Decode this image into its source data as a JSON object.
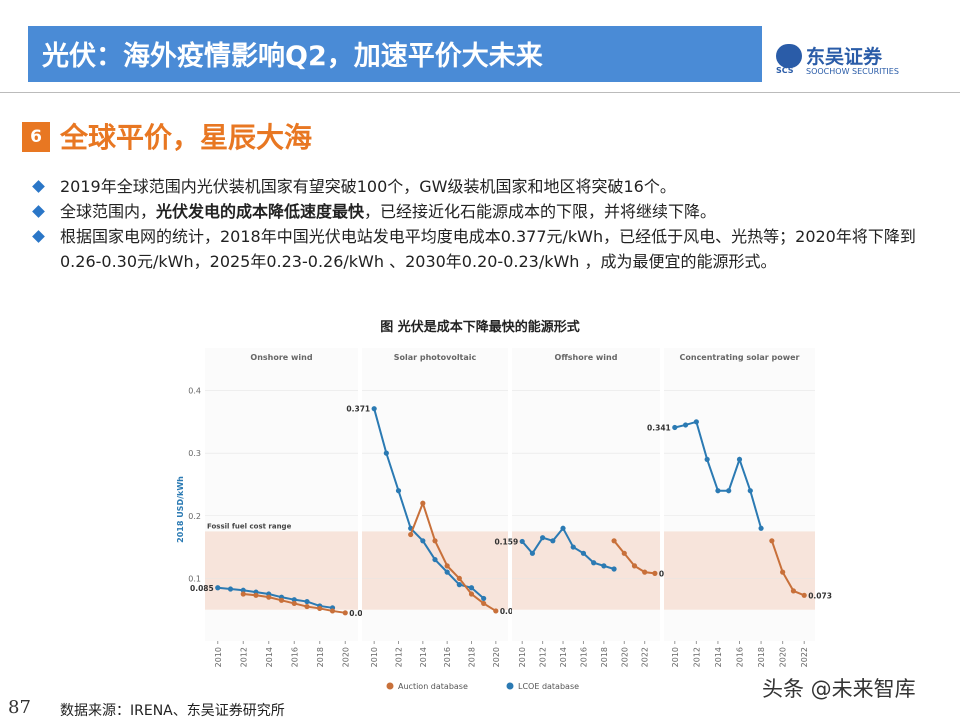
{
  "header": {
    "title": "光伏：海外疫情影响Q2，加速平价大未来",
    "logo_cn": "东吴证券",
    "logo_en": "SOOCHOW SECURITIES",
    "logo_mark": "SCS"
  },
  "section": {
    "number": "6",
    "title": "全球平价，星辰大海"
  },
  "bullets": [
    {
      "text": "2019年全球范围内光伏装机国家有望突破100个，GW级装机国家和地区将突破16个。"
    },
    {
      "text": "全球范围内，",
      "bold": "光伏发电的成本降低速度最快",
      "tail": "，已经接近化石能源成本的下限，并将继续下降。"
    },
    {
      "text": "根据国家电网的统计，2018年中国光伏电站发电平均度电成本0.377元/kWh，已经低于风电、光热等；2020年将下降到0.26-0.30元/kWh，2025年0.23-0.26/kWh 、2030年0.20-0.23/kWh ，成为最便宜的能源形式。"
    }
  ],
  "figure_title": "图  光伏是成本下降最快的能源形式",
  "chart_data": [
    {
      "type": "line",
      "title": "Onshore wind",
      "ylabel": "2018 USD/kWh",
      "annotation": "Fossil fuel cost range",
      "fossil_range": [
        0.05,
        0.175
      ],
      "x": [
        2010,
        2011,
        2012,
        2013,
        2014,
        2015,
        2016,
        2017,
        2018,
        2019,
        2020
      ],
      "xlim": [
        2009,
        2021
      ],
      "xticks": [
        2010,
        2012,
        2014,
        2016,
        2018,
        2020
      ],
      "ylim": [
        0,
        0.42
      ],
      "yticks": [
        0.1,
        0.2,
        0.3,
        0.4
      ],
      "series": [
        {
          "name": "LCOE database",
          "color": "#2b7ab3",
          "values": [
            0.085,
            0.083,
            0.081,
            0.078,
            0.075,
            0.07,
            0.066,
            0.063,
            0.056,
            0.053,
            null
          ]
        },
        {
          "name": "Auction database",
          "color": "#c8703a",
          "values": [
            null,
            null,
            0.075,
            0.073,
            0.07,
            0.065,
            0.06,
            0.055,
            0.052,
            0.048,
            0.045
          ]
        }
      ]
    },
    {
      "type": "line",
      "title": "Solar photovoltaic",
      "fossil_range": [
        0.05,
        0.175
      ],
      "x": [
        2010,
        2011,
        2012,
        2013,
        2014,
        2015,
        2016,
        2017,
        2018,
        2019,
        2020
      ],
      "xlim": [
        2009,
        2021
      ],
      "xticks": [
        2010,
        2012,
        2014,
        2016,
        2018,
        2020
      ],
      "ylim": [
        0,
        0.42
      ],
      "yticks": [
        0.1,
        0.2,
        0.3,
        0.4
      ],
      "series": [
        {
          "color": "#2b7ab3",
          "values": [
            0.371,
            0.3,
            0.24,
            0.18,
            0.16,
            0.13,
            0.11,
            0.09,
            0.085,
            0.068,
            null
          ]
        },
        {
          "color": "#c8703a",
          "values": [
            null,
            null,
            null,
            0.17,
            0.22,
            0.16,
            0.12,
            0.1,
            0.075,
            0.06,
            0.048
          ]
        }
      ]
    },
    {
      "type": "line",
      "title": "Offshore wind",
      "fossil_range": [
        0.05,
        0.175
      ],
      "x": [
        2010,
        2011,
        2012,
        2013,
        2014,
        2015,
        2016,
        2017,
        2018,
        2019,
        2020,
        2021,
        2022,
        2023
      ],
      "xlim": [
        2009,
        2023.5
      ],
      "xticks": [
        2010,
        2012,
        2014,
        2016,
        2018,
        2020,
        2022
      ],
      "ylim": [
        0,
        0.42
      ],
      "yticks": [
        0.1,
        0.2,
        0.3,
        0.4
      ],
      "series": [
        {
          "color": "#2b7ab3",
          "values": [
            0.159,
            0.14,
            0.165,
            0.16,
            0.18,
            0.15,
            0.14,
            0.125,
            0.12,
            0.115,
            null,
            null,
            null,
            null
          ]
        },
        {
          "color": "#c8703a",
          "values": [
            null,
            null,
            null,
            null,
            null,
            null,
            null,
            null,
            null,
            0.16,
            0.14,
            0.12,
            0.11,
            0.108
          ]
        }
      ]
    },
    {
      "type": "line",
      "title": "Concentrating solar power",
      "fossil_range": [
        0.05,
        0.175
      ],
      "x": [
        2010,
        2011,
        2012,
        2013,
        2014,
        2015,
        2016,
        2017,
        2018,
        2019,
        2020,
        2021,
        2022
      ],
      "xlim": [
        2009,
        2023
      ],
      "xticks": [
        2010,
        2012,
        2014,
        2016,
        2018,
        2020,
        2022
      ],
      "ylim": [
        0,
        0.42
      ],
      "yticks": [
        0.1,
        0.2,
        0.3,
        0.4
      ],
      "series": [
        {
          "color": "#2b7ab3",
          "values": [
            0.341,
            0.345,
            0.35,
            0.29,
            0.24,
            0.24,
            0.29,
            0.24,
            0.18,
            null,
            null,
            null,
            null
          ]
        },
        {
          "color": "#c8703a",
          "values": [
            null,
            null,
            null,
            null,
            null,
            null,
            null,
            null,
            null,
            0.16,
            0.11,
            0.08,
            0.073
          ]
        }
      ]
    }
  ],
  "source": "数据来源：IRENA、东吴证券研究所",
  "page_number": "87",
  "watermark": "头条 @未来智库"
}
